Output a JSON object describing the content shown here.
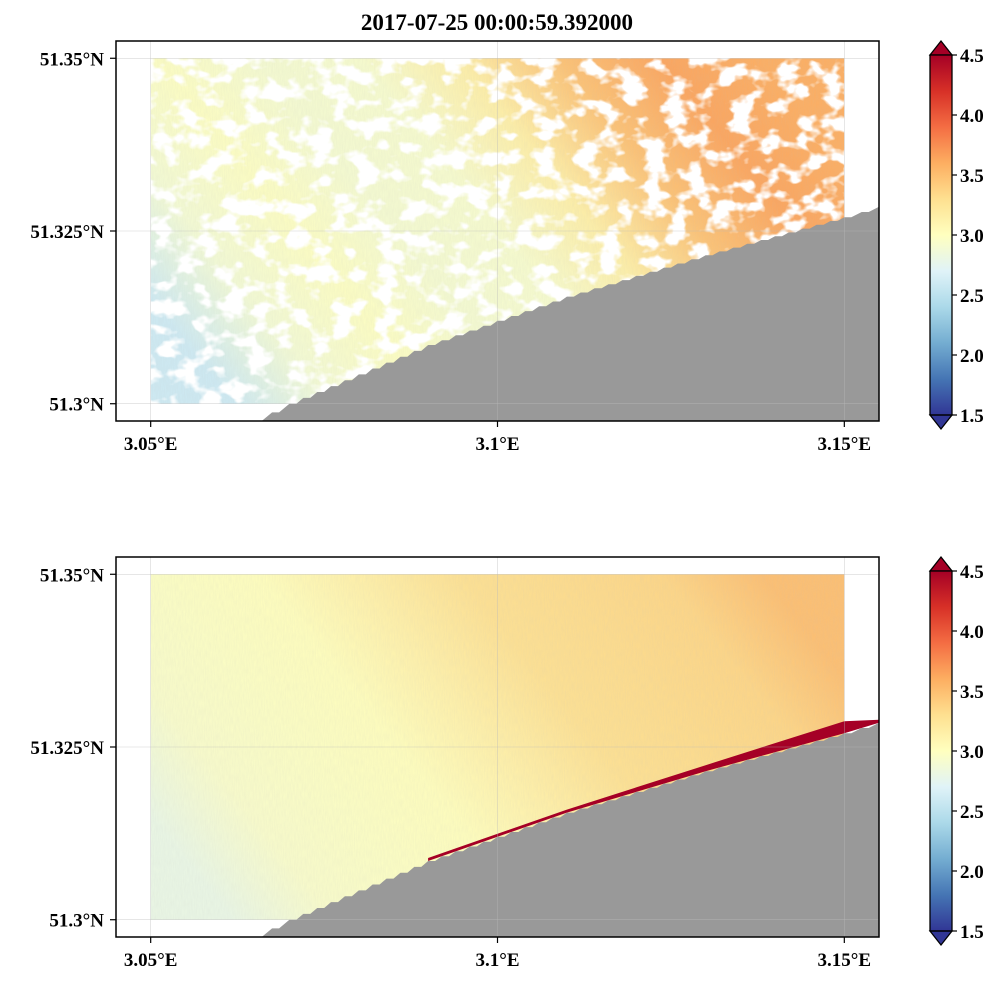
{
  "chart_data": [
    {
      "type": "heatmap",
      "title": "2017-07-25 00:00:59.392000",
      "x_ticks": [
        "3.05°E",
        "3.1°E",
        "3.15°E"
      ],
      "x_tick_values": [
        3.05,
        3.1,
        3.15
      ],
      "y_ticks": [
        "51.35°N",
        "51.325°N",
        "51.3°N"
      ],
      "y_tick_values": [
        51.35,
        51.325,
        51.3
      ],
      "xlim": [
        3.045,
        3.155
      ],
      "ylim": [
        51.2975,
        51.3525
      ],
      "data_extent": {
        "lon": [
          3.05,
          3.15
        ],
        "lat": [
          51.3,
          51.35
        ]
      },
      "grid": true,
      "colorbar": {
        "cmap": "RdYlBu_r",
        "min": 1.5,
        "max": 4.5,
        "extend": "both",
        "ticks": [
          "1.5",
          "2.0",
          "2.5",
          "3.0",
          "3.5",
          "4.0",
          "4.5"
        ]
      },
      "field_description": {
        "west": 2.6,
        "east": 3.6,
        "has_gaps": true
      },
      "land_color": "#999999",
      "coast_polyline": [
        [
          3.065,
          51.2975
        ],
        [
          3.07,
          51.3
        ],
        [
          3.09,
          51.3085
        ],
        [
          3.11,
          51.3155
        ],
        [
          3.13,
          51.3215
        ],
        [
          3.15,
          51.327
        ],
        [
          3.155,
          51.3285
        ]
      ]
    },
    {
      "type": "heatmap",
      "title": "",
      "x_ticks": [
        "3.05°E",
        "3.1°E",
        "3.15°E"
      ],
      "x_tick_values": [
        3.05,
        3.1,
        3.15
      ],
      "y_ticks": [
        "51.35°N",
        "51.325°N",
        "51.3°N"
      ],
      "y_tick_values": [
        51.35,
        51.325,
        51.3
      ],
      "xlim": [
        3.045,
        3.155
      ],
      "ylim": [
        51.2975,
        51.3525
      ],
      "data_extent": {
        "lon": [
          3.05,
          3.15
        ],
        "lat": [
          51.3,
          51.35
        ]
      },
      "grid": true,
      "colorbar": {
        "cmap": "RdYlBu_r",
        "min": 1.5,
        "max": 4.5,
        "extend": "both",
        "ticks": [
          "1.5",
          "2.0",
          "2.5",
          "3.0",
          "3.5",
          "4.0",
          "4.5"
        ]
      },
      "field_description": {
        "west": 2.8,
        "east": 3.5,
        "has_gaps": false,
        "coastal_high_values": 4.5
      },
      "land_color": "#999999",
      "coast_polyline": [
        [
          3.065,
          51.2975
        ],
        [
          3.07,
          51.3
        ],
        [
          3.09,
          51.3085
        ],
        [
          3.11,
          51.3155
        ],
        [
          3.13,
          51.3215
        ],
        [
          3.15,
          51.327
        ],
        [
          3.155,
          51.3285
        ]
      ]
    }
  ]
}
